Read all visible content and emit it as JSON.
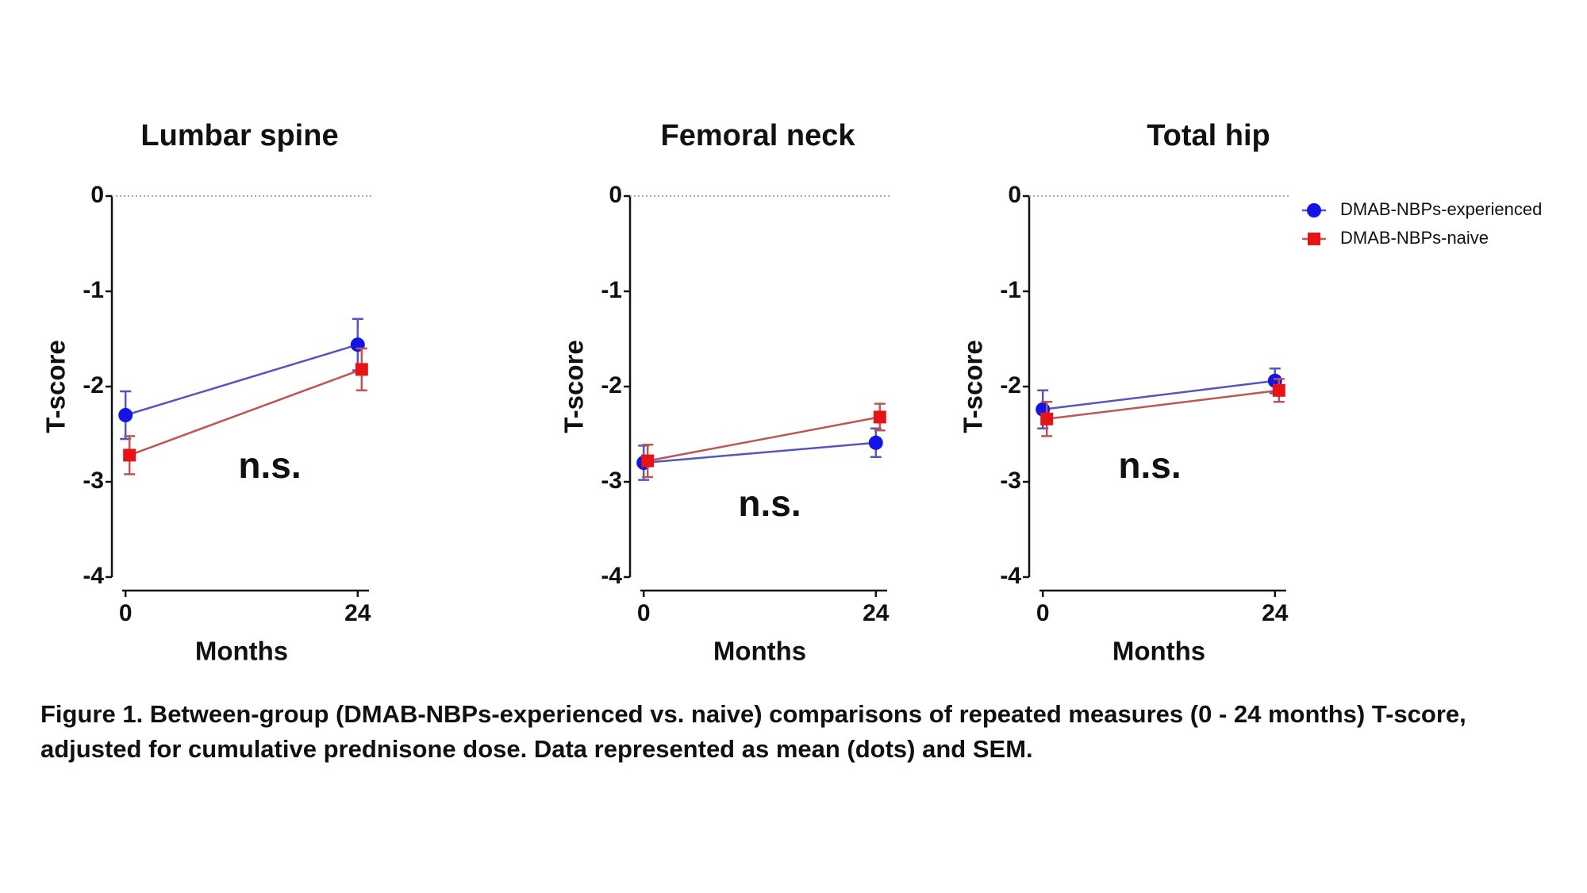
{
  "chart_data": [
    {
      "type": "line",
      "title": "Lumbar spine",
      "xlabel": "Months",
      "ylabel": "T-score",
      "annotation": "n.s.",
      "x": [
        0,
        24
      ],
      "xlim": [
        -1,
        25
      ],
      "xticks": [
        0,
        24
      ],
      "ylim": [
        -4,
        0
      ],
      "yticks": [
        -4,
        -3,
        -2,
        -1,
        0
      ],
      "hline": 0,
      "legend": false,
      "series": [
        {
          "name": "DMAB-NBPs-experienced",
          "color": "#1414e6",
          "values": [
            -2.3,
            -1.56
          ],
          "errors": [
            0.25,
            0.27
          ]
        },
        {
          "name": "DMAB-NBPs-naive",
          "color": "#e61414",
          "values": [
            -2.72,
            -1.82
          ],
          "errors": [
            0.2,
            0.22
          ]
        }
      ]
    },
    {
      "type": "line",
      "title": "Femoral neck",
      "xlabel": "Months",
      "ylabel": "T-score",
      "annotation": "n.s.",
      "x": [
        0,
        24
      ],
      "xlim": [
        -1,
        25
      ],
      "xticks": [
        0,
        24
      ],
      "ylim": [
        -4,
        0
      ],
      "yticks": [
        -4,
        -3,
        -2,
        -1,
        0
      ],
      "hline": 0,
      "legend": false,
      "series": [
        {
          "name": "DMAB-NBPs-experienced",
          "color": "#1414e6",
          "values": [
            -2.8,
            -2.59
          ],
          "errors": [
            0.18,
            0.15
          ]
        },
        {
          "name": "DMAB-NBPs-naive",
          "color": "#e61414",
          "values": [
            -2.78,
            -2.32
          ],
          "errors": [
            0.17,
            0.14
          ]
        }
      ]
    },
    {
      "type": "line",
      "title": "Total hip",
      "xlabel": "Months",
      "ylabel": "T-score",
      "annotation": "n.s.",
      "x": [
        0,
        24
      ],
      "xlim": [
        -1,
        25
      ],
      "xticks": [
        0,
        24
      ],
      "ylim": [
        -4,
        0
      ],
      "yticks": [
        -4,
        -3,
        -2,
        -1,
        0
      ],
      "hline": 0,
      "legend": true,
      "series": [
        {
          "name": "DMAB-NBPs-experienced",
          "color": "#1414e6",
          "values": [
            -2.24,
            -1.94
          ],
          "errors": [
            0.2,
            0.13
          ]
        },
        {
          "name": "DMAB-NBPs-naive",
          "color": "#e61414",
          "values": [
            -2.34,
            -2.04
          ],
          "errors": [
            0.18,
            0.12
          ]
        }
      ]
    }
  ],
  "caption": "Figure 1. Between-group (DMAB-NBPs-experienced vs. naive) comparisons of repeated measures (0 - 24 months) T-score, adjusted for cumulative prednisone dose. Data represented as mean (dots) and SEM."
}
